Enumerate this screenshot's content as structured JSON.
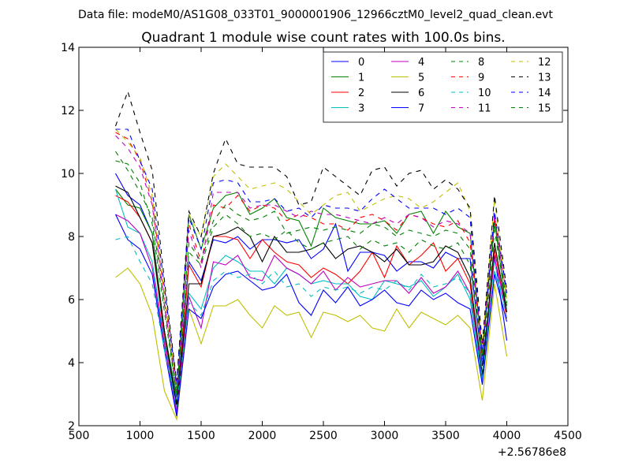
{
  "chart_data": {
    "type": "line",
    "suptitle": "Data file: modeM0/AS1G08_033T01_9000001906_12966cztM0_level2_quad_clean.evt",
    "title": "Quadrant 1 module wise count rates with 100.0s bins.",
    "xlabel": "",
    "ylabel": "",
    "xlim": [
      500,
      4500
    ],
    "ylim": [
      2,
      14
    ],
    "x_ticks": [
      500,
      1000,
      1500,
      2000,
      2500,
      3000,
      3500,
      4000,
      4500
    ],
    "y_ticks": [
      2,
      4,
      6,
      8,
      10,
      12,
      14
    ],
    "x_offset_label": "+2.56786e8",
    "grid": false,
    "legend_position": "top-right",
    "x": [
      800,
      900,
      1000,
      1100,
      1200,
      1300,
      1400,
      1500,
      1600,
      1700,
      1800,
      1900,
      2000,
      2100,
      2200,
      2300,
      2400,
      2500,
      2600,
      2700,
      2800,
      2900,
      3000,
      3100,
      3200,
      3300,
      3400,
      3500,
      3600,
      3700,
      3800,
      3900,
      4000
    ],
    "series": [
      {
        "name": "0",
        "color": "#0000ff",
        "dash": "solid",
        "values": [
          10.0,
          9.3,
          9.0,
          8.1,
          5.0,
          2.7,
          7.2,
          6.6,
          7.9,
          7.8,
          8.0,
          7.6,
          7.9,
          7.9,
          7.8,
          7.9,
          7.3,
          7.6,
          8.4,
          6.9,
          7.5,
          7.5,
          7.4,
          6.9,
          7.2,
          7.2,
          7.0,
          7.5,
          7.3,
          7.3,
          3.9,
          7.4,
          4.7
        ]
      },
      {
        "name": "1",
        "color": "#008000",
        "dash": "solid",
        "values": [
          9.5,
          9.0,
          8.9,
          8.1,
          5.0,
          2.9,
          8.7,
          7.6,
          8.9,
          9.3,
          9.4,
          8.7,
          8.9,
          9.2,
          8.6,
          8.5,
          7.7,
          8.9,
          8.6,
          8.5,
          8.4,
          8.4,
          8.5,
          8.1,
          8.7,
          8.8,
          8.1,
          8.8,
          8.3,
          8.1,
          4.3,
          8.5,
          5.6
        ]
      },
      {
        "name": "2",
        "color": "#ff0000",
        "dash": "solid",
        "values": [
          9.3,
          9.1,
          8.6,
          7.8,
          4.8,
          2.5,
          7.1,
          6.4,
          8.0,
          8.0,
          7.9,
          7.3,
          7.9,
          7.5,
          7.2,
          7.1,
          6.7,
          7.0,
          6.8,
          6.5,
          6.9,
          7.5,
          6.7,
          7.7,
          7.1,
          7.4,
          7.8,
          6.9,
          7.3,
          6.5,
          3.5,
          7.6,
          5.4
        ]
      },
      {
        "name": "3",
        "color": "#00bfbf",
        "dash": "solid",
        "values": [
          9.5,
          8.3,
          8.1,
          7.2,
          4.7,
          2.5,
          6.2,
          5.7,
          7.0,
          7.4,
          7.2,
          6.9,
          6.9,
          6.5,
          7.0,
          6.8,
          6.5,
          6.6,
          6.5,
          6.5,
          6.1,
          6.0,
          6.6,
          6.5,
          6.4,
          6.6,
          6.1,
          6.4,
          6.8,
          6.0,
          3.4,
          6.9,
          5.6
        ]
      },
      {
        "name": "4",
        "color": "#bf00bf",
        "dash": "solid",
        "values": [
          8.7,
          8.5,
          8.1,
          7.0,
          4.6,
          2.4,
          6.1,
          5.1,
          7.2,
          7.1,
          7.4,
          6.7,
          6.6,
          7.4,
          7.0,
          6.8,
          6.5,
          6.9,
          6.3,
          6.7,
          6.4,
          6.5,
          6.6,
          6.6,
          6.2,
          6.7,
          6.2,
          6.4,
          6.9,
          6.2,
          3.6,
          7.3,
          5.6
        ]
      },
      {
        "name": "5",
        "color": "#bfbf00",
        "dash": "solid",
        "values": [
          6.7,
          7.0,
          6.5,
          5.5,
          3.1,
          2.2,
          5.7,
          4.6,
          5.8,
          5.8,
          6.0,
          5.5,
          5.1,
          5.8,
          5.5,
          5.6,
          4.8,
          5.6,
          5.5,
          5.3,
          5.5,
          5.1,
          5.0,
          5.7,
          5.1,
          5.6,
          5.4,
          5.2,
          5.5,
          5.1,
          2.8,
          6.5,
          4.2
        ]
      },
      {
        "name": "6",
        "color": "#000000",
        "dash": "solid",
        "values": [
          9.6,
          9.4,
          8.6,
          7.8,
          5.0,
          2.6,
          6.5,
          6.5,
          8.0,
          8.1,
          8.3,
          8.0,
          7.2,
          8.0,
          7.5,
          7.5,
          7.6,
          7.8,
          7.3,
          7.6,
          7.7,
          7.5,
          7.2,
          7.6,
          7.1,
          7.1,
          7.2,
          7.7,
          7.5,
          6.7,
          3.6,
          7.8,
          5.6
        ]
      },
      {
        "name": "7",
        "color": "#0000ff",
        "dash": "solid",
        "values": [
          8.7,
          7.9,
          7.6,
          6.8,
          4.4,
          2.3,
          5.7,
          5.4,
          6.4,
          6.8,
          6.9,
          6.6,
          6.3,
          6.4,
          6.8,
          5.9,
          5.5,
          6.3,
          5.9,
          6.4,
          5.8,
          6.0,
          6.3,
          5.9,
          5.8,
          6.3,
          6.0,
          6.2,
          5.9,
          5.7,
          3.3,
          6.8,
          5.3
        ]
      },
      {
        "name": "8",
        "color": "#008000",
        "dash": "dashed",
        "values": [
          10.7,
          10.1,
          9.4,
          8.6,
          5.8,
          3.0,
          7.5,
          7.1,
          8.3,
          8.7,
          8.4,
          8.0,
          8.1,
          7.9,
          8.2,
          7.8,
          7.6,
          7.8,
          7.9,
          8.0,
          7.6,
          7.9,
          7.7,
          7.8,
          7.5,
          7.9,
          7.7,
          7.6,
          7.8,
          7.1,
          4.0,
          8.2,
          5.8
        ]
      },
      {
        "name": "9",
        "color": "#ff0000",
        "dash": "dashed",
        "values": [
          11.3,
          11.1,
          10.4,
          9.1,
          6.1,
          3.2,
          8.4,
          7.2,
          9.0,
          8.9,
          9.3,
          8.8,
          9.0,
          8.9,
          8.5,
          8.7,
          8.6,
          8.4,
          8.4,
          8.2,
          8.6,
          8.7,
          8.5,
          8.2,
          8.7,
          8.6,
          8.4,
          8.3,
          8.5,
          7.8,
          4.2,
          8.6,
          6.1
        ]
      },
      {
        "name": "10",
        "color": "#00bfbf",
        "dash": "dashed",
        "values": [
          7.9,
          8.0,
          7.2,
          6.5,
          4.4,
          2.6,
          5.9,
          5.5,
          6.6,
          6.9,
          6.7,
          6.8,
          6.5,
          6.9,
          6.4,
          6.5,
          6.1,
          6.4,
          6.3,
          6.4,
          6.2,
          6.4,
          6.3,
          6.6,
          6.3,
          6.8,
          6.4,
          6.5,
          6.7,
          6.2,
          3.5,
          7.2,
          5.4
        ]
      },
      {
        "name": "11",
        "color": "#bf00bf",
        "dash": "dashed",
        "values": [
          11.2,
          10.8,
          10.2,
          9.0,
          5.9,
          3.1,
          8.2,
          7.0,
          9.4,
          9.4,
          9.4,
          8.9,
          9.0,
          9.0,
          8.8,
          8.6,
          8.8,
          8.7,
          8.7,
          8.6,
          8.5,
          8.4,
          8.6,
          8.4,
          8.7,
          8.6,
          8.3,
          8.5,
          8.4,
          8.1,
          4.4,
          8.7,
          5.9
        ]
      },
      {
        "name": "12",
        "color": "#bfbf00",
        "dash": "dashed",
        "values": [
          11.4,
          11.0,
          10.5,
          9.3,
          6.2,
          3.2,
          8.7,
          8.0,
          9.9,
          10.3,
          9.9,
          9.5,
          9.6,
          9.7,
          9.5,
          9.1,
          8.7,
          9.0,
          9.3,
          9.4,
          8.8,
          9.0,
          9.2,
          9.3,
          9.2,
          8.9,
          9.1,
          9.4,
          9.7,
          8.8,
          4.5,
          9.2,
          6.0
        ]
      },
      {
        "name": "13",
        "color": "#000000",
        "dash": "dashed",
        "values": [
          11.5,
          12.6,
          11.3,
          10.1,
          6.6,
          3.4,
          8.8,
          8.0,
          10.0,
          11.1,
          10.3,
          10.2,
          10.2,
          10.2,
          9.9,
          9.0,
          9.1,
          10.2,
          9.9,
          9.6,
          9.3,
          10.1,
          10.2,
          9.6,
          10.0,
          10.1,
          9.5,
          9.8,
          9.5,
          8.9,
          4.6,
          9.3,
          6.3
        ]
      },
      {
        "name": "14",
        "color": "#0000ff",
        "dash": "dashed",
        "values": [
          11.4,
          11.4,
          10.4,
          9.5,
          6.4,
          3.3,
          8.6,
          7.6,
          9.7,
          9.8,
          9.7,
          9.1,
          9.1,
          9.2,
          8.8,
          8.9,
          8.6,
          9.0,
          8.9,
          8.9,
          8.8,
          9.2,
          9.5,
          9.2,
          8.9,
          8.9,
          8.9,
          8.7,
          8.9,
          8.6,
          4.2,
          8.8,
          6.2
        ]
      },
      {
        "name": "15",
        "color": "#008000",
        "dash": "dashed",
        "values": [
          10.4,
          10.3,
          9.7,
          8.4,
          5.6,
          3.0,
          7.8,
          7.2,
          8.5,
          9.0,
          8.7,
          8.5,
          8.6,
          8.8,
          8.1,
          8.2,
          8.3,
          8.2,
          8.3,
          8.2,
          8.1,
          8.4,
          8.3,
          8.0,
          8.2,
          8.1,
          8.0,
          8.2,
          8.1,
          7.6,
          4.1,
          8.4,
          5.9
        ]
      }
    ]
  }
}
